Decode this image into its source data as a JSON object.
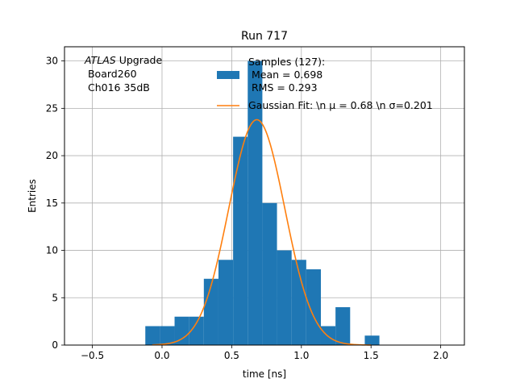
{
  "chart_data": {
    "type": "bar",
    "title": "Run 717",
    "xlabel": "time [ns]",
    "ylabel": "Entries",
    "xlim": [
      -0.7,
      2.17
    ],
    "ylim": [
      0,
      31.5
    ],
    "xticks": [
      -0.5,
      0.0,
      0.5,
      1.0,
      1.5,
      2.0
    ],
    "xtick_labels": [
      "−0.5",
      "0.0",
      "0.5",
      "1.0",
      "1.5",
      "2.0"
    ],
    "yticks": [
      0,
      5,
      10,
      15,
      20,
      25,
      30
    ],
    "ytick_labels": [
      "0",
      "5",
      "10",
      "15",
      "20",
      "25",
      "30"
    ],
    "grid": true,
    "legend_placement": "top-center",
    "annotation": {
      "italic": "ATLAS",
      "rest": " Upgrade",
      "line2": " Board260",
      "line3": " Ch016 35dB"
    },
    "series": [
      {
        "name": "Samples (127):",
        "legend_lines": [
          "Samples (127):",
          " Mean = 0.698",
          " RMS = 0.293"
        ],
        "kind": "histogram",
        "color": "#1f77b4",
        "bin_edges": [
          -0.12,
          -0.015,
          0.09,
          0.195,
          0.3,
          0.405,
          0.51,
          0.615,
          0.72,
          0.825,
          0.93,
          1.035,
          1.14,
          1.245,
          1.35,
          1.455,
          1.56
        ],
        "values": [
          2,
          2,
          3,
          3,
          7,
          9,
          22,
          30,
          15,
          10,
          9,
          8,
          2,
          4,
          0,
          1
        ]
      },
      {
        "name": "Gaussian Fit: \\n μ = 0.68 \\n σ=0.201",
        "legend_text": "Gaussian Fit: \\n μ = 0.68 \\n σ=0.201",
        "kind": "line",
        "color": "#ff7f0e",
        "mu": 0.68,
        "sigma": 0.201,
        "amplitude": 23.8,
        "x_range": [
          -0.07,
          1.5
        ]
      }
    ]
  }
}
